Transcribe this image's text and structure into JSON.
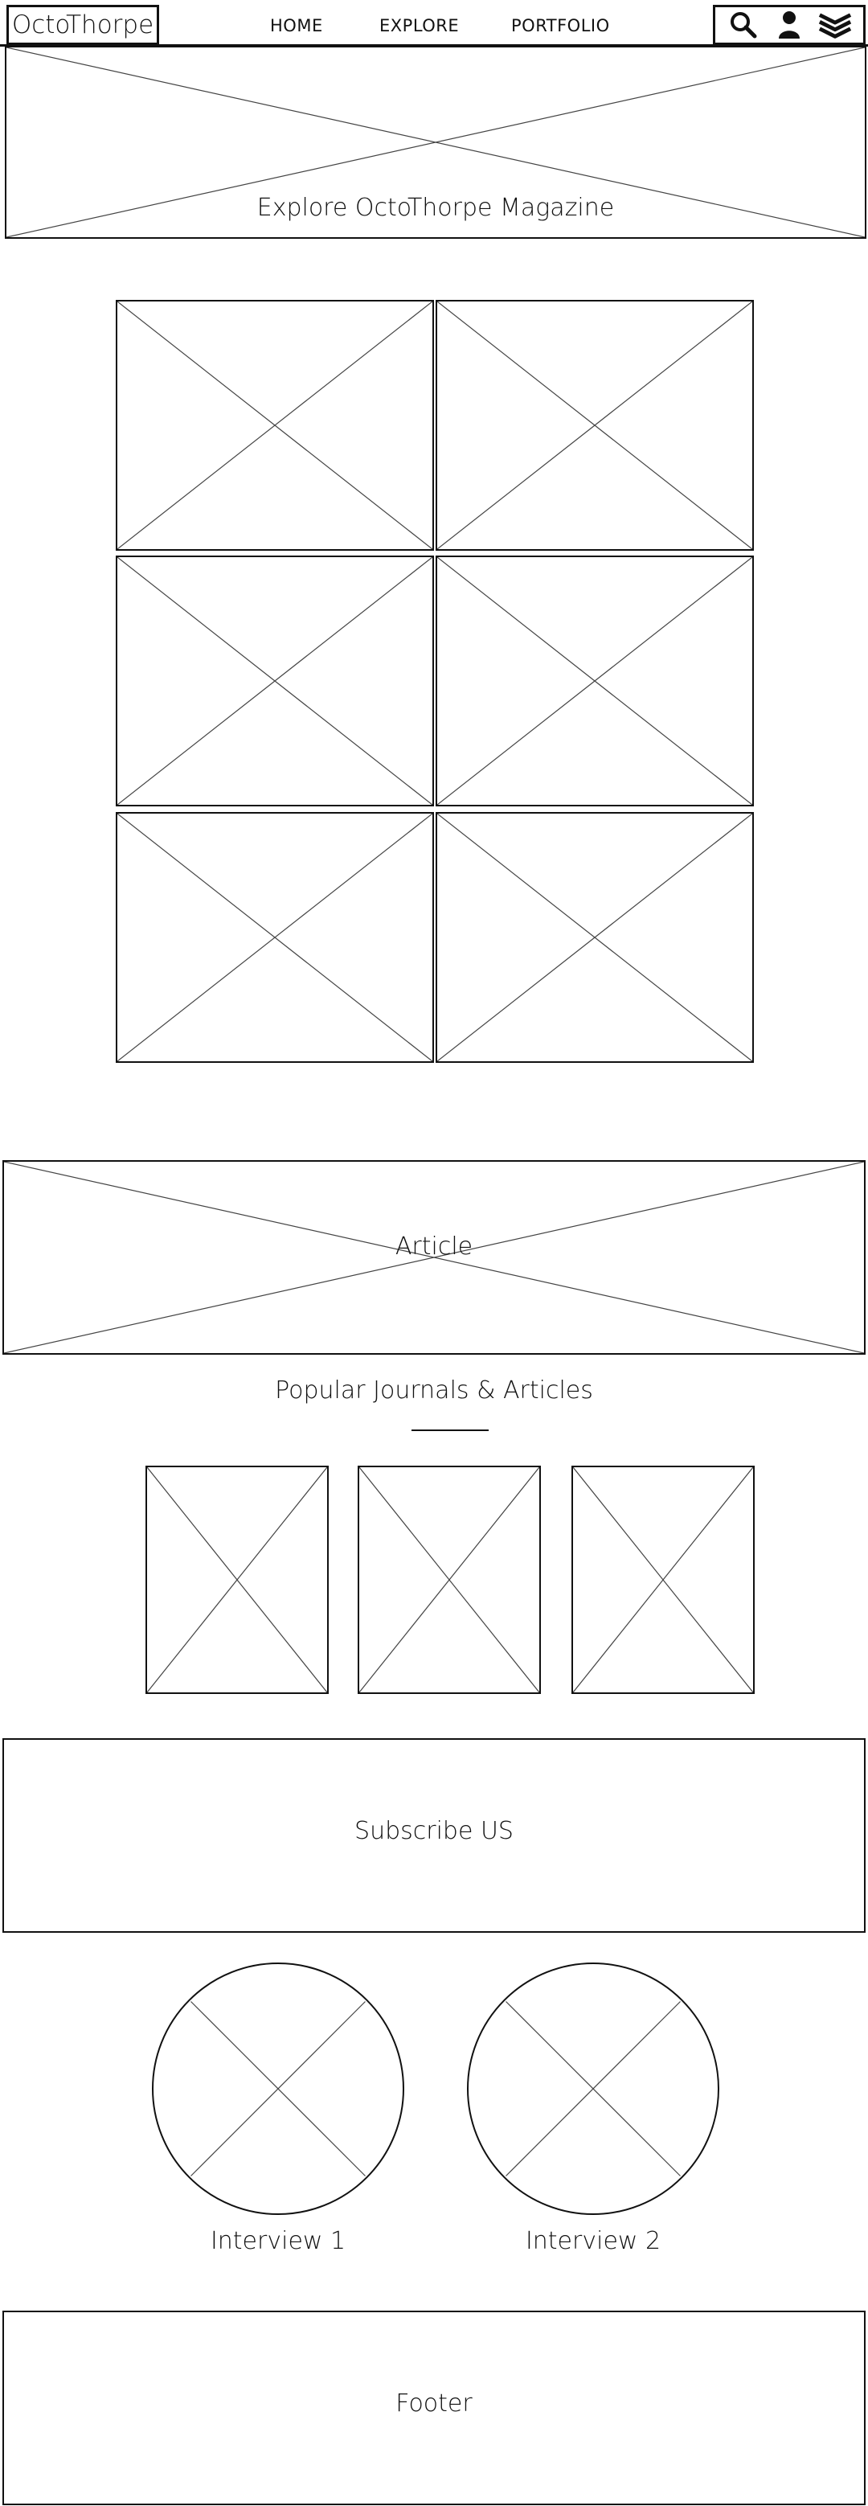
{
  "header": {
    "brand": "OctoThorpe",
    "nav": [
      "HOME",
      "EXPLORE",
      "PORTFOLIO"
    ],
    "icons": [
      "search-icon",
      "user-icon",
      "layers-icon"
    ]
  },
  "hero": {
    "title": "Explore OctoThorpe Magazine"
  },
  "gallery": {
    "rows": 3,
    "columns": 2
  },
  "article_banner": {
    "label": "Article"
  },
  "popular": {
    "title": "Popular Journals & Articles",
    "cards": 3
  },
  "subscribe": {
    "label": "Subscribe US"
  },
  "interviews": [
    {
      "label": "Interview 1"
    },
    {
      "label": "Interview 2"
    }
  ],
  "footer": {
    "label": "Footer"
  },
  "colors": {
    "stroke": "#111111",
    "background": "#ffffff"
  }
}
